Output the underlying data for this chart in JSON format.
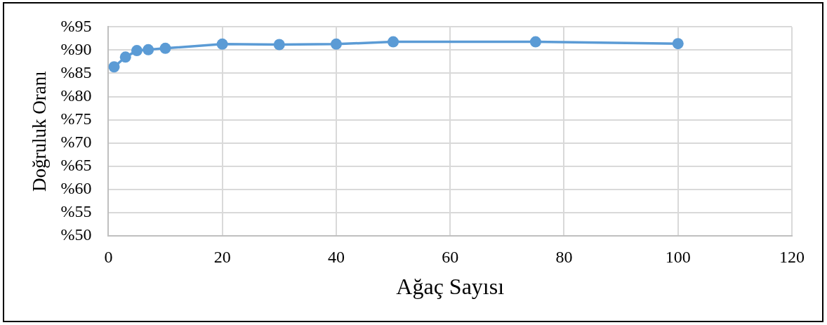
{
  "chart_data": {
    "type": "line",
    "xlabel": "Ağaç Sayısı",
    "ylabel": "Doğruluk Oranı",
    "x": [
      1,
      3,
      5,
      7,
      10,
      20,
      30,
      40,
      50,
      75,
      100
    ],
    "series": [
      {
        "color": "#5b9bd5",
        "values": [
          86.4,
          88.5,
          89.9,
          90.1,
          90.4,
          91.3,
          91.2,
          91.3,
          91.8,
          91.8,
          91.4
        ]
      }
    ],
    "xlim": [
      0,
      120
    ],
    "xticks": [
      0,
      20,
      40,
      60,
      80,
      100,
      120
    ],
    "ylim": [
      50,
      95
    ],
    "yticks": [
      {
        "value": 50,
        "label": "%50"
      },
      {
        "value": 55,
        "label": "%55"
      },
      {
        "value": 60,
        "label": "%60"
      },
      {
        "value": 65,
        "label": "%65"
      },
      {
        "value": 70,
        "label": "%70"
      },
      {
        "value": 75,
        "label": "%75"
      },
      {
        "value": 80,
        "label": "%80"
      },
      {
        "value": 85,
        "label": "%85"
      },
      {
        "value": 90,
        "label": "%90"
      },
      {
        "value": 95,
        "label": "%95"
      }
    ],
    "grid": true,
    "legend": false,
    "marker": "circle",
    "line_style": "solid"
  }
}
